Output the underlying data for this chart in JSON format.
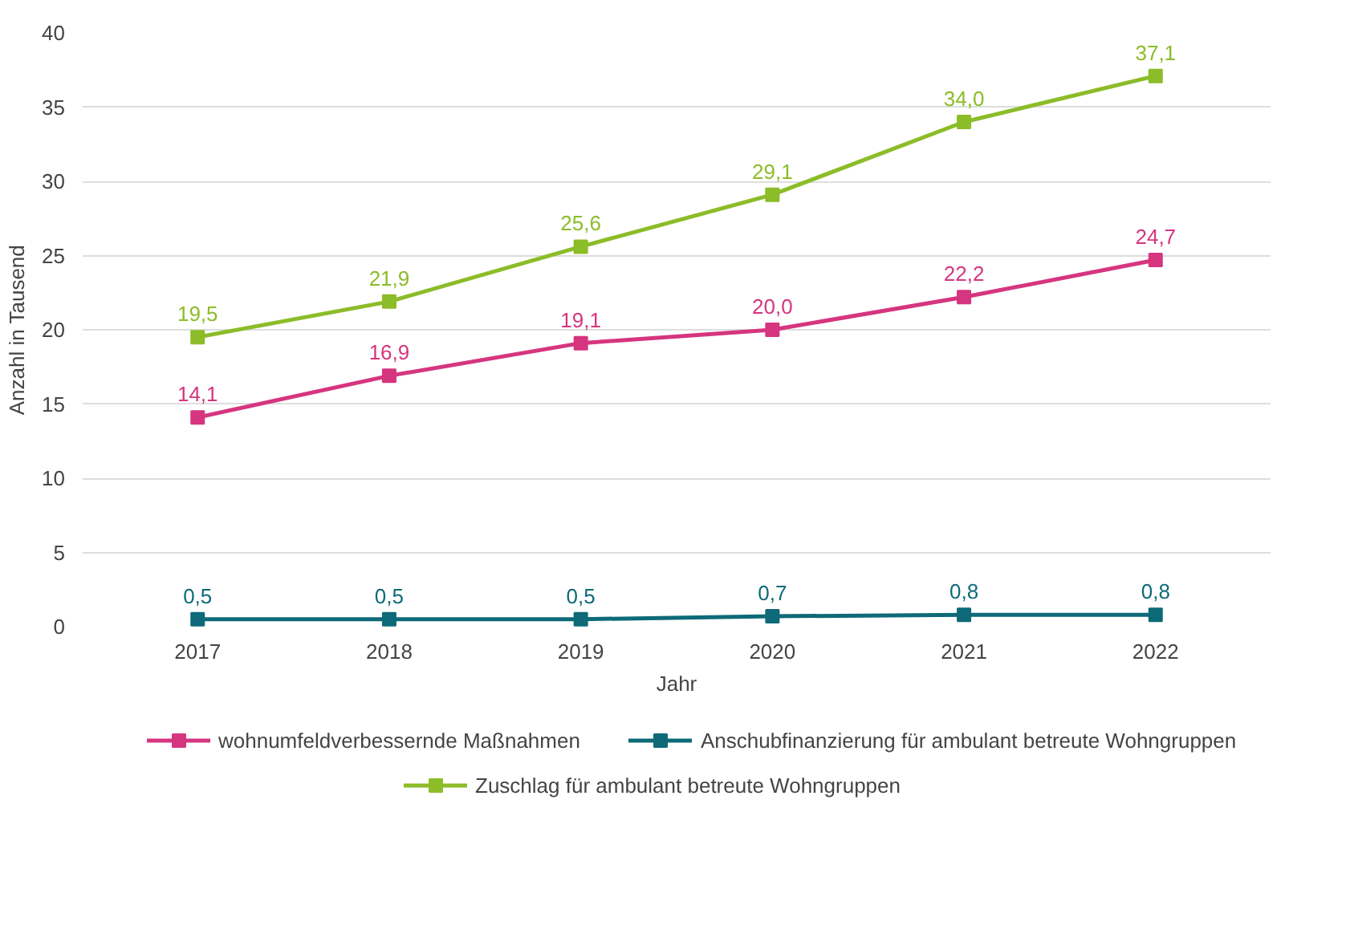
{
  "chart_data": {
    "type": "line",
    "xlabel": "Jahr",
    "ylabel": "Anzahl in Tausend",
    "categories": [
      "2017",
      "2018",
      "2019",
      "2020",
      "2021",
      "2022"
    ],
    "ylim": [
      0,
      40
    ],
    "yticks": [
      0,
      5,
      10,
      15,
      20,
      25,
      30,
      35,
      40
    ],
    "grid": "y",
    "legend": "bottom",
    "marker": "square",
    "line_style": "solid",
    "series": [
      {
        "name": "wohnumfeldverbessernde Maßnahmen",
        "color": "#d6357f",
        "values": [
          14.1,
          16.9,
          19.1,
          20.0,
          22.2,
          24.7
        ],
        "value_labels": [
          "14,1",
          "16,9",
          "19,1",
          "20,0",
          "22,2",
          "24,7"
        ]
      },
      {
        "name": "Anschubfinanzierung für ambulant betreute Wohngruppen",
        "color": "#0e6a78",
        "values": [
          0.5,
          0.5,
          0.5,
          0.7,
          0.8,
          0.8
        ],
        "value_labels": [
          "0,5",
          "0,5",
          "0,5",
          "0,7",
          "0,8",
          "0,8"
        ]
      },
      {
        "name": "Zuschlag für ambulant betreute Wohngruppen",
        "color": "#8cbc28",
        "values": [
          19.5,
          21.9,
          25.6,
          29.1,
          34.0,
          37.1
        ],
        "value_labels": [
          "19,5",
          "21,9",
          "25,6",
          "29,1",
          "34,0",
          "37,1"
        ]
      }
    ]
  }
}
